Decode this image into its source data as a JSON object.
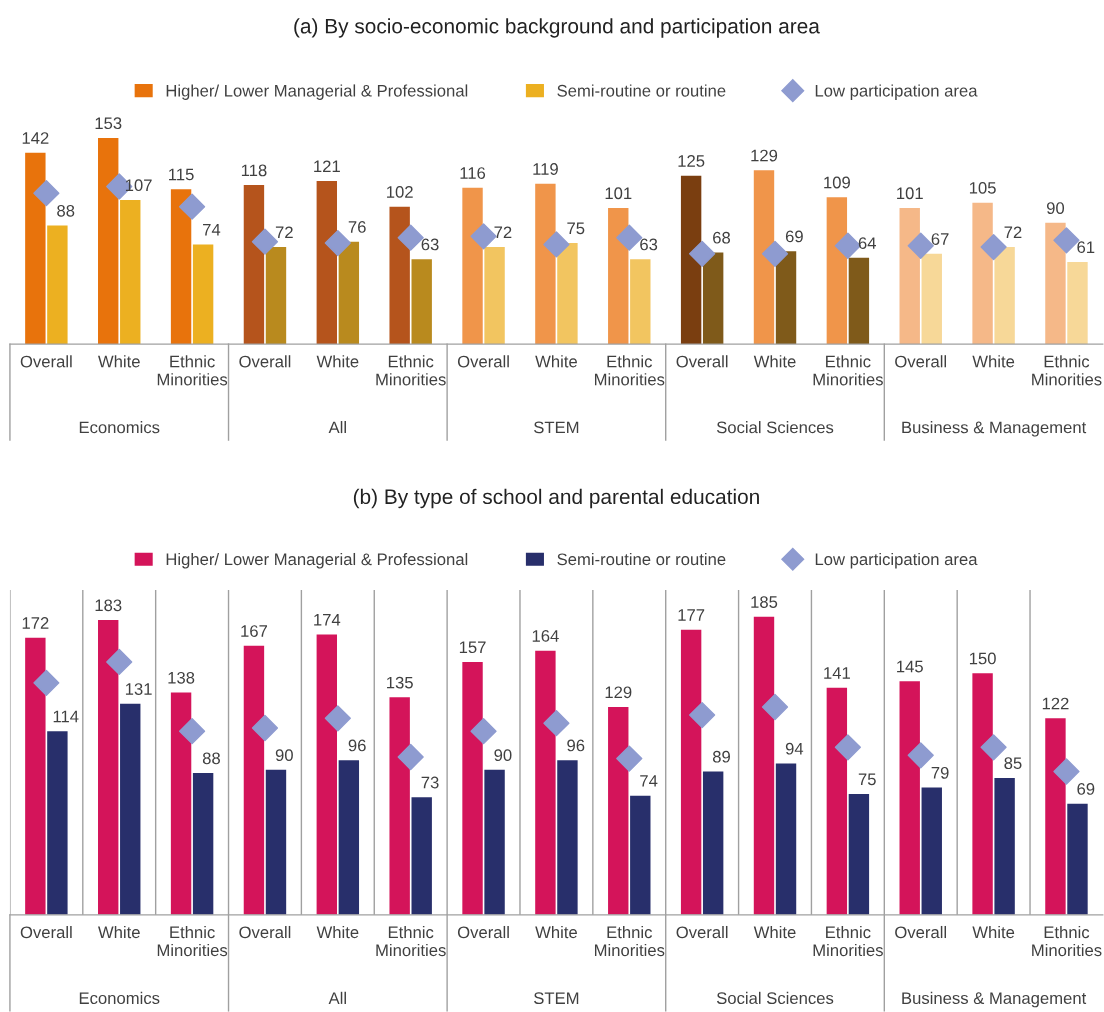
{
  "chart_data": [
    {
      "type": "bar",
      "title": "(a) By socio-economic background and participation area",
      "categories": [
        "Overall",
        "White",
        "Ethnic Minorities",
        "Overall",
        "White",
        "Ethnic Minorities",
        "Overall",
        "White",
        "Ethnic Minorities",
        "Overall",
        "White",
        "Ethnic Minorities",
        "Overall",
        "White",
        "Ethnic Minorities"
      ],
      "annotations": [
        "Economics",
        "All",
        "STEM",
        "Social Sciences",
        "Business & Management"
      ],
      "legend": "top",
      "grid": false,
      "series": [
        {
          "name": "Higher/ Lower Managerial & Professional",
          "color": "#e8730c",
          "colors": [
            "#e8730c",
            "#e8730c",
            "#e8730c",
            "#b5541c",
            "#b5541c",
            "#b5541c",
            "#f0954a",
            "#f0954a",
            "#f0954a",
            "#7a3e10",
            "#f0954a",
            "#f0954a",
            "#f5b888",
            "#f5b888",
            "#f5b888"
          ],
          "values": [
            142,
            153,
            115,
            118,
            121,
            102,
            116,
            119,
            101,
            125,
            129,
            109,
            101,
            105,
            90
          ],
          "value_labels": [
            "142",
            "153",
            "115",
            "118",
            "121",
            "102",
            "116",
            "119",
            "101",
            "125",
            "129",
            "109",
            "101",
            "105",
            "90"
          ]
        },
        {
          "name": "Semi-routine or routine",
          "color": "#ecb021",
          "colors": [
            "#ecb021",
            "#ecb021",
            "#ecb021",
            "#b98a1e",
            "#b98a1e",
            "#b98a1e",
            "#f2c560",
            "#f2c560",
            "#f2c560",
            "#7f5a1a",
            "#7f5a1a",
            "#7f5a1a",
            "#f7d898",
            "#f7d898",
            "#f7d898"
          ],
          "values": [
            88,
            107,
            74,
            72,
            76,
            63,
            72,
            75,
            63,
            68,
            69,
            64,
            67,
            72,
            61
          ],
          "value_labels": [
            "88",
            "107",
            "74",
            "72",
            "76",
            "63",
            "72",
            "75",
            "63",
            "68",
            "69",
            "64",
            "67",
            "72",
            "61"
          ]
        },
        {
          "name": "Low participation area",
          "type": "scatter",
          "marker": "diamond",
          "color": "#8e9bd0",
          "values": [
            112,
            117,
            102,
            76,
            75,
            79,
            80,
            74,
            79,
            67,
            67,
            73,
            73,
            72,
            77
          ]
        }
      ]
    },
    {
      "type": "bar",
      "title": "(b) By type of school and parental education",
      "categories": [
        "Overall",
        "White",
        "Ethnic Minorities",
        "Overall",
        "White",
        "Ethnic Minorities",
        "Overall",
        "White",
        "Ethnic Minorities",
        "Overall",
        "White",
        "Ethnic Minorities",
        "Overall",
        "White",
        "Ethnic Minorities"
      ],
      "annotations": [
        "Economics",
        "All",
        "STEM",
        "Social Sciences",
        "Business & Management"
      ],
      "legend": "top",
      "grid": "x",
      "series": [
        {
          "name": "Higher/ Lower Managerial & Professional",
          "color": "#d4145a",
          "values": [
            172,
            183,
            138,
            167,
            174,
            135,
            157,
            164,
            129,
            177,
            185,
            141,
            145,
            150,
            122
          ],
          "value_labels": [
            "172",
            "183",
            "138",
            "167",
            "174",
            "135",
            "157",
            "164",
            "129",
            "177",
            "185",
            "141",
            "145",
            "150",
            "122"
          ]
        },
        {
          "name": "Semi-routine or routine",
          "color": "#282f6b",
          "values": [
            114,
            131,
            88,
            90,
            96,
            73,
            90,
            96,
            74,
            89,
            94,
            75,
            79,
            85,
            69
          ],
          "value_labels": [
            "114",
            "131",
            "88",
            "90",
            "96",
            "73",
            "90",
            "96",
            "74",
            "89",
            "94",
            "75",
            "79",
            "85",
            "69"
          ]
        },
        {
          "name": "Low participation area",
          "type": "scatter",
          "marker": "diamond",
          "color": "#8e9bd0",
          "values": [
            144,
            157,
            114,
            116,
            122,
            98,
            114,
            119,
            97,
            124,
            129,
            104,
            99,
            104,
            89
          ]
        }
      ]
    }
  ]
}
